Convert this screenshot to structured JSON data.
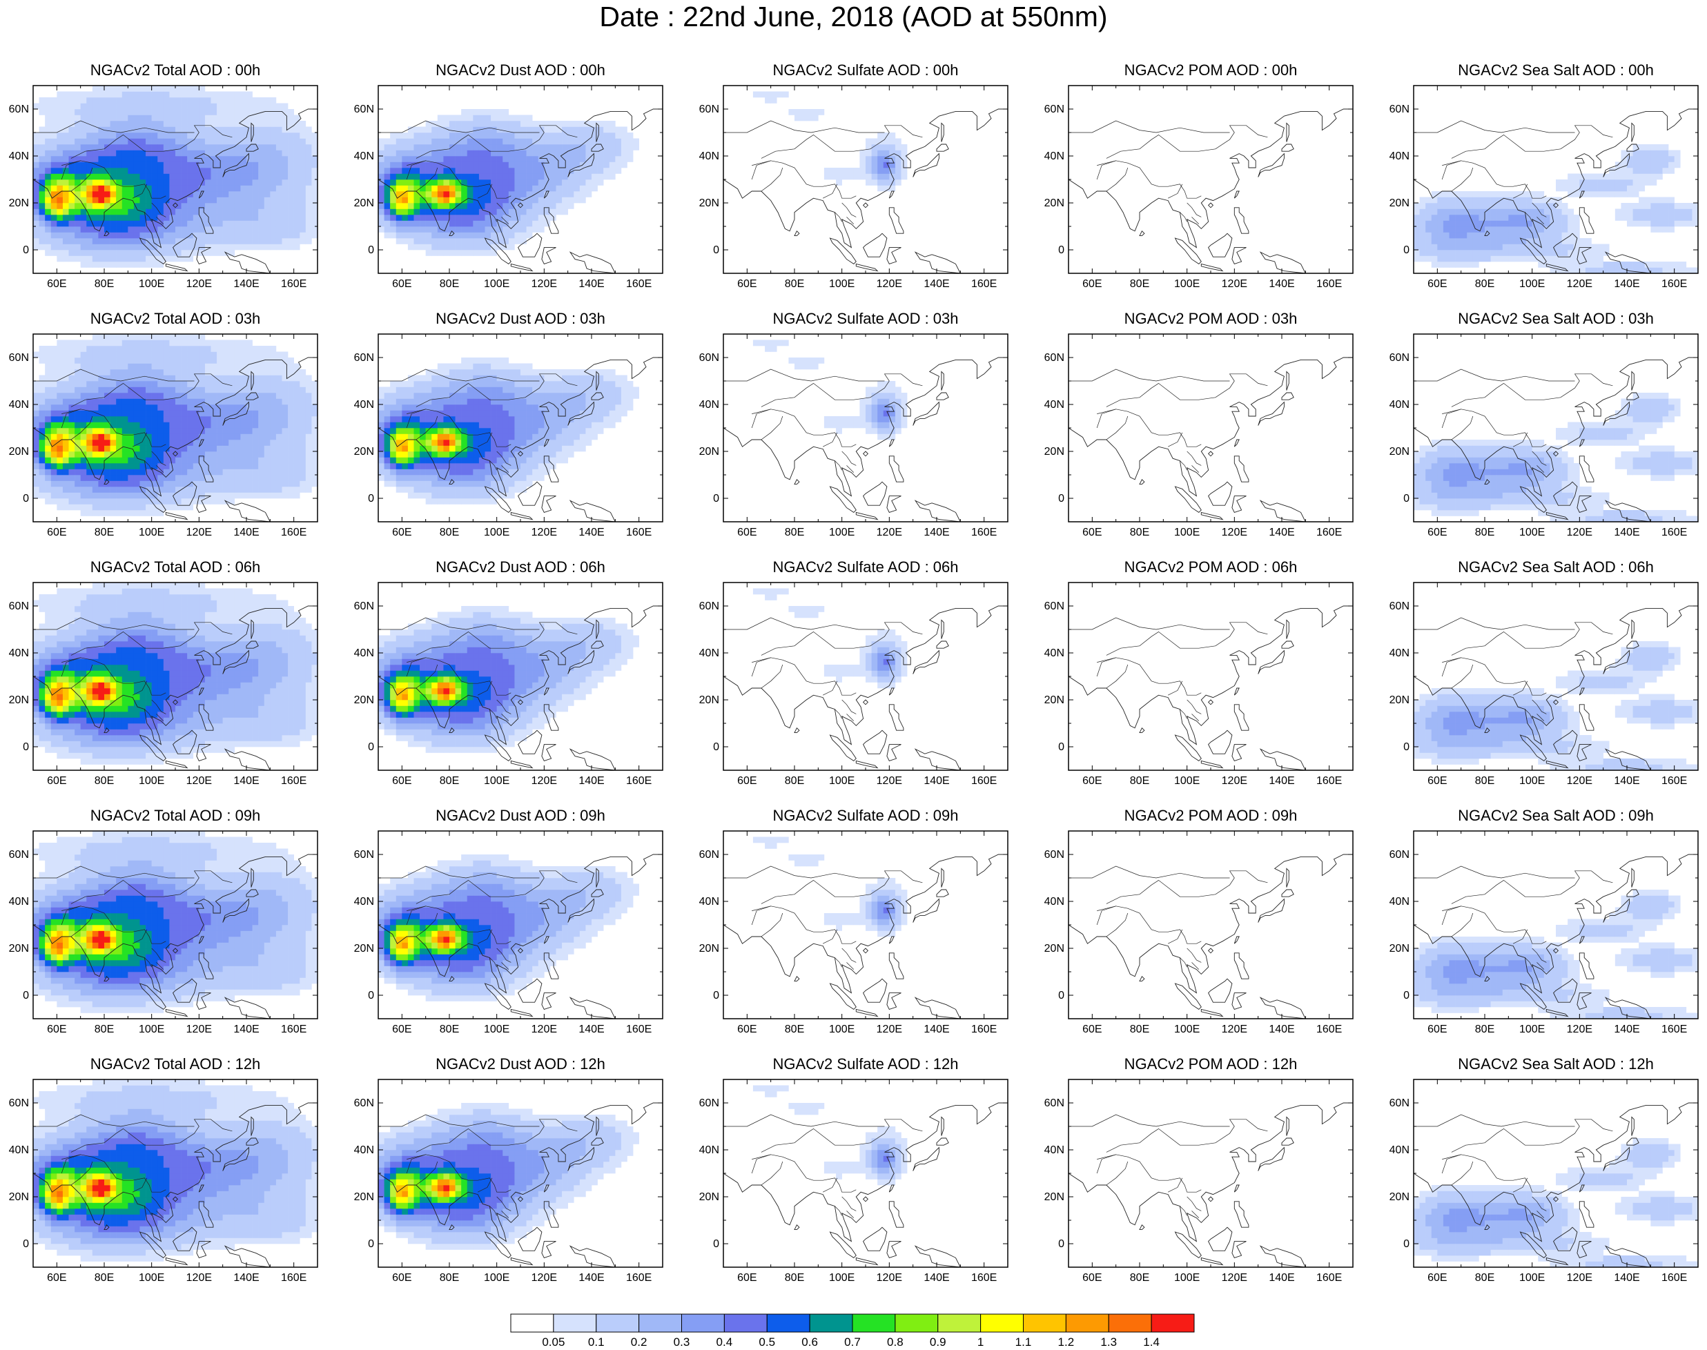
{
  "main_title": "Date : 22nd June, 2018 (AOD at 550nm)",
  "map_extent": {
    "lon": [
      50,
      170
    ],
    "lat": [
      -10,
      70
    ]
  },
  "x_ticks": [
    {
      "value": 60,
      "label": "60E"
    },
    {
      "value": 80,
      "label": "80E"
    },
    {
      "value": 100,
      "label": "100E"
    },
    {
      "value": 120,
      "label": "120E"
    },
    {
      "value": 140,
      "label": "140E"
    },
    {
      "value": 160,
      "label": "160E"
    }
  ],
  "y_ticks": [
    {
      "value": 60,
      "label": "60N"
    },
    {
      "value": 40,
      "label": "40N"
    },
    {
      "value": 20,
      "label": "20N"
    },
    {
      "value": 0,
      "label": "0"
    }
  ],
  "colorbar": {
    "colors": [
      "#ffffff",
      "#d6e2fd",
      "#bacdfb",
      "#a0b8f7",
      "#859ef4",
      "#6a73ec",
      "#0d5deb",
      "#00948f",
      "#25e224",
      "#80ee12",
      "#bff23a",
      "#ffff00",
      "#ffc400",
      "#fd9a02",
      "#fb6f08",
      "#f71c16"
    ],
    "labels": [
      "0.05",
      "0.1",
      "0.2",
      "0.3",
      "0.4",
      "0.5",
      "0.6",
      "0.7",
      "0.8",
      "0.9",
      "1",
      "1.1",
      "1.2",
      "1.3",
      "1.4"
    ]
  },
  "species": [
    {
      "key": "total",
      "blobs": [
        [
          80,
          22,
          28,
          10,
          0.4
        ],
        [
          60,
          25,
          10,
          10,
          0.4
        ],
        [
          72,
          35,
          25,
          12,
          0.28
        ],
        [
          95,
          45,
          20,
          12,
          0.22
        ],
        [
          120,
          35,
          25,
          12,
          0.22
        ],
        [
          150,
          40,
          22,
          14,
          0.18
        ],
        [
          105,
          10,
          28,
          12,
          0.16
        ],
        [
          150,
          10,
          22,
          10,
          0.14
        ],
        [
          100,
          62,
          50,
          8,
          0.12
        ],
        [
          80,
          10,
          25,
          12,
          0.3
        ],
        [
          90,
          30,
          30,
          20,
          0.2
        ],
        [
          135,
          25,
          30,
          12,
          0.14
        ],
        [
          78,
          24,
          6,
          5,
          0.85
        ],
        [
          60,
          20,
          6,
          8,
          0.55
        ]
      ]
    },
    {
      "key": "dust",
      "blobs": [
        [
          80,
          22,
          28,
          10,
          0.4
        ],
        [
          60,
          25,
          10,
          10,
          0.4
        ],
        [
          72,
          35,
          25,
          12,
          0.28
        ],
        [
          95,
          45,
          20,
          12,
          0.22
        ],
        [
          120,
          35,
          22,
          12,
          0.18
        ],
        [
          140,
          45,
          18,
          10,
          0.14
        ],
        [
          85,
          10,
          22,
          10,
          0.26
        ],
        [
          100,
          28,
          25,
          15,
          0.16
        ],
        [
          78,
          24,
          6,
          5,
          0.85
        ],
        [
          60,
          20,
          6,
          8,
          0.55
        ]
      ]
    },
    {
      "key": "sulfate",
      "blobs": [
        [
          118,
          36,
          5,
          6,
          0.3
        ],
        [
          118,
          38,
          10,
          12,
          0.12
        ],
        [
          70,
          66,
          10,
          3,
          0.1
        ],
        [
          85,
          58,
          8,
          3,
          0.1
        ],
        [
          98,
          32,
          8,
          4,
          0.1
        ]
      ]
    },
    {
      "key": "pom",
      "blobs": []
    },
    {
      "key": "seasalt",
      "blobs": [
        [
          80,
          12,
          25,
          10,
          0.22
        ],
        [
          65,
          8,
          15,
          12,
          0.18
        ],
        [
          100,
          12,
          15,
          8,
          0.18
        ],
        [
          150,
          38,
          12,
          6,
          0.18
        ],
        [
          155,
          15,
          18,
          6,
          0.16
        ],
        [
          130,
          28,
          18,
          5,
          0.14
        ],
        [
          140,
          -8,
          30,
          3,
          0.14
        ],
        [
          95,
          0,
          40,
          5,
          0.12
        ]
      ]
    }
  ],
  "panels": [
    [
      "NGACv2 Total AOD : 00h",
      "NGACv2 Dust AOD : 00h",
      "NGACv2 Sulfate AOD : 00h",
      "NGACv2 POM AOD : 00h",
      "NGACv2 Sea Salt AOD : 00h"
    ],
    [
      "NGACv2 Total AOD : 03h",
      "NGACv2 Dust AOD : 03h",
      "NGACv2 Sulfate AOD : 03h",
      "NGACv2 POM AOD : 03h",
      "NGACv2 Sea Salt AOD : 03h"
    ],
    [
      "NGACv2 Total AOD : 06h",
      "NGACv2 Dust AOD : 06h",
      "NGACv2 Sulfate AOD : 06h",
      "NGACv2 POM AOD : 06h",
      "NGACv2 Sea Salt AOD : 06h"
    ],
    [
      "NGACv2 Total AOD : 09h",
      "NGACv2 Dust AOD : 09h",
      "NGACv2 Sulfate AOD : 09h",
      "NGACv2 POM AOD : 09h",
      "NGACv2 Sea Salt  AOD : 09h"
    ],
    [
      "NGACv2 Total AOD  : 12h",
      "NGACv2 Dust AOD : 12h",
      "NGACv2 Sulfate AOD : 12h",
      "NGACv2 POM  AOD : 12h",
      "NGACv2 Sea Salt  AOD : 12h"
    ]
  ]
}
